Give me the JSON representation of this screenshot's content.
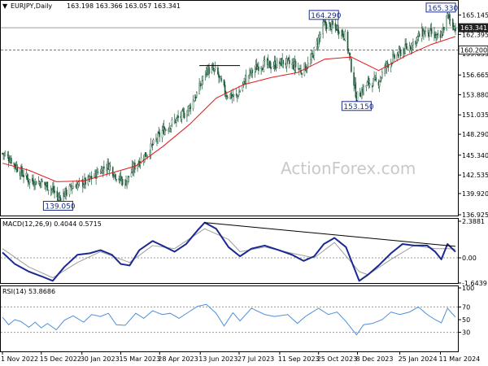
{
  "chart_data": [
    {
      "type": "candlestick",
      "name": "price",
      "title": "EURJPY,Daily",
      "ohlc": "163.198 163.366 163.057 163.341",
      "ylim": [
        136.925,
        166.8
      ],
      "y_ticks": [
        "165.145",
        "162.395",
        "159.655",
        "156.665",
        "153.880",
        "151.035",
        "148.290",
        "145.340",
        "142.535",
        "139.920",
        "136.925"
      ],
      "horizontal_lines": [
        {
          "value": 163.341,
          "label": "163.341",
          "color": "#9e9e9e",
          "label_style": "box-dark"
        },
        {
          "value": 160.2,
          "label": "160.200",
          "color": "#777777",
          "style": "dashed",
          "label_style": "box-light"
        }
      ],
      "callouts": [
        {
          "label": "164.290",
          "date": "2023-10-31",
          "value": 164.29
        },
        {
          "label": "165.330",
          "date": "2024-03-19",
          "value": 165.33
        },
        {
          "label": "153.150",
          "date": "2023-12-07",
          "value": 153.15
        },
        {
          "label": "139.050",
          "date": "2023-01-03",
          "value": 139.05
        }
      ],
      "segment_line": {
        "start_date": "2023-06-12",
        "end_date": "2023-07-28",
        "value": 158.0
      },
      "moving_average": {
        "color": "#e21b1b",
        "points": [
          [
            "2022-11-01",
            144.2
          ],
          [
            "2022-12-01",
            143.2
          ],
          [
            "2023-01-01",
            141.6
          ],
          [
            "2023-02-01",
            141.7
          ],
          [
            "2023-03-01",
            142.7
          ],
          [
            "2023-04-01",
            143.8
          ],
          [
            "2023-05-01",
            146.5
          ],
          [
            "2023-06-01",
            149.7
          ],
          [
            "2023-07-01",
            153.4
          ],
          [
            "2023-08-01",
            155.3
          ],
          [
            "2023-09-01",
            156.3
          ],
          [
            "2023-10-01",
            157.0
          ],
          [
            "2023-11-01",
            158.9
          ],
          [
            "2023-12-01",
            159.2
          ],
          [
            "2024-01-01",
            157.3
          ],
          [
            "2024-02-01",
            159.4
          ],
          [
            "2024-03-01",
            161.0
          ],
          [
            "2024-03-28",
            162.1
          ]
        ]
      },
      "close_path": [
        [
          "2022-11-01",
          145.6
        ],
        [
          "2022-11-10",
          144.8
        ],
        [
          "2022-11-20",
          143.2
        ],
        [
          "2022-12-01",
          141.8
        ],
        [
          "2022-12-15",
          141.5
        ],
        [
          "2022-12-28",
          140.5
        ],
        [
          "2023-01-03",
          139.1
        ],
        [
          "2023-01-20",
          141.0
        ],
        [
          "2023-02-05",
          141.6
        ],
        [
          "2023-02-20",
          143.2
        ],
        [
          "2023-03-01",
          144.0
        ],
        [
          "2023-03-10",
          142.4
        ],
        [
          "2023-03-20",
          141.4
        ],
        [
          "2023-04-01",
          144.0
        ],
        [
          "2023-04-15",
          145.8
        ],
        [
          "2023-05-01",
          148.7
        ],
        [
          "2023-05-15",
          150.2
        ],
        [
          "2023-05-28",
          151.3
        ],
        [
          "2023-06-10",
          154.2
        ],
        [
          "2023-06-20",
          157.4
        ],
        [
          "2023-07-01",
          157.2
        ],
        [
          "2023-07-12",
          154.0
        ],
        [
          "2023-07-24",
          153.5
        ],
        [
          "2023-08-05",
          156.5
        ],
        [
          "2023-08-20",
          158.2
        ],
        [
          "2023-09-01",
          158.0
        ],
        [
          "2023-09-15",
          158.5
        ],
        [
          "2023-09-28",
          158.0
        ],
        [
          "2023-10-05",
          157.3
        ],
        [
          "2023-10-15",
          158.3
        ],
        [
          "2023-10-31",
          163.8
        ],
        [
          "2023-11-15",
          163.4
        ],
        [
          "2023-11-25",
          162.0
        ],
        [
          "2023-12-07",
          153.5
        ],
        [
          "2023-12-20",
          155.5
        ],
        [
          "2024-01-01",
          155.8
        ],
        [
          "2024-01-10",
          158.1
        ],
        [
          "2024-01-25",
          159.8
        ],
        [
          "2024-02-05",
          160.7
        ],
        [
          "2024-02-20",
          162.7
        ],
        [
          "2024-03-01",
          162.5
        ],
        [
          "2024-03-10",
          161.5
        ],
        [
          "2024-03-19",
          165.0
        ],
        [
          "2024-03-28",
          163.3
        ]
      ]
    },
    {
      "type": "line",
      "name": "macd",
      "title": "MACD(12,26,9) 0.4044 0.5715",
      "ylim": [
        -1.6439,
        2.3881
      ],
      "y_ticks": [
        "2.3881",
        "0.00",
        "-1.6439"
      ],
      "zero_line": true,
      "series": [
        {
          "name": "MACD",
          "color": "#1b2891",
          "points": [
            [
              "2022-11-01",
              0.35
            ],
            [
              "2022-11-15",
              -0.4
            ],
            [
              "2022-12-01",
              -0.9
            ],
            [
              "2022-12-15",
              -1.2
            ],
            [
              "2022-12-28",
              -1.5
            ],
            [
              "2023-01-10",
              -0.6
            ],
            [
              "2023-01-25",
              0.2
            ],
            [
              "2023-02-08",
              0.3
            ],
            [
              "2023-02-20",
              0.5
            ],
            [
              "2023-03-05",
              0.2
            ],
            [
              "2023-03-15",
              -0.4
            ],
            [
              "2023-03-25",
              -0.5
            ],
            [
              "2023-04-05",
              0.5
            ],
            [
              "2023-04-20",
              1.1
            ],
            [
              "2023-05-01",
              0.8
            ],
            [
              "2023-05-15",
              0.4
            ],
            [
              "2023-05-28",
              0.9
            ],
            [
              "2023-06-10",
              1.8
            ],
            [
              "2023-06-18",
              2.3
            ],
            [
              "2023-07-01",
              1.9
            ],
            [
              "2023-07-15",
              0.7
            ],
            [
              "2023-07-28",
              0.1
            ],
            [
              "2023-08-10",
              0.6
            ],
            [
              "2023-08-25",
              0.8
            ],
            [
              "2023-09-10",
              0.5
            ],
            [
              "2023-09-25",
              0.2
            ],
            [
              "2023-10-08",
              -0.2
            ],
            [
              "2023-10-20",
              0.1
            ],
            [
              "2023-10-31",
              0.9
            ],
            [
              "2023-11-12",
              1.3
            ],
            [
              "2023-11-25",
              0.7
            ],
            [
              "2023-12-10",
              -1.5
            ],
            [
              "2023-12-20",
              -1.1
            ],
            [
              "2024-01-01",
              -0.5
            ],
            [
              "2024-01-15",
              0.3
            ],
            [
              "2024-01-28",
              0.9
            ],
            [
              "2024-02-10",
              0.8
            ],
            [
              "2024-02-25",
              0.8
            ],
            [
              "2024-03-05",
              0.4
            ],
            [
              "2024-03-12",
              -0.1
            ],
            [
              "2024-03-19",
              0.9
            ],
            [
              "2024-03-28",
              0.4
            ]
          ]
        },
        {
          "name": "Signal",
          "color": "#9e9e9e",
          "points": [
            [
              "2022-11-01",
              0.6
            ],
            [
              "2022-12-01",
              -0.6
            ],
            [
              "2022-12-28",
              -1.3
            ],
            [
              "2023-01-25",
              -0.3
            ],
            [
              "2023-02-20",
              0.4
            ],
            [
              "2023-03-25",
              -0.3
            ],
            [
              "2023-04-20",
              0.8
            ],
            [
              "2023-05-15",
              0.6
            ],
            [
              "2023-06-18",
              1.9
            ],
            [
              "2023-07-15",
              1.2
            ],
            [
              "2023-07-28",
              0.4
            ],
            [
              "2023-08-25",
              0.7
            ],
            [
              "2023-09-25",
              0.3
            ],
            [
              "2023-10-20",
              0.0
            ],
            [
              "2023-11-12",
              1.0
            ],
            [
              "2023-12-10",
              -0.9
            ],
            [
              "2023-12-20",
              -1.1
            ],
            [
              "2024-01-15",
              -0.1
            ],
            [
              "2024-02-10",
              0.8
            ],
            [
              "2024-03-05",
              0.6
            ],
            [
              "2024-03-19",
              0.6
            ],
            [
              "2024-03-28",
              0.57
            ]
          ]
        }
      ],
      "trendline": {
        "start": [
          "2023-06-18",
          2.3
        ],
        "end": [
          "2024-03-28",
          0.75
        ]
      }
    },
    {
      "type": "line",
      "name": "rsi",
      "title": "RSI(14) 53.8686",
      "ylim": [
        0,
        100
      ],
      "y_ticks": [
        "100",
        "70",
        "50",
        "30"
      ],
      "levels": [
        70,
        30
      ],
      "series": [
        {
          "name": "RSI",
          "color": "#4f8fd6",
          "points": [
            [
              "2022-11-01",
              54
            ],
            [
              "2022-11-08",
              42
            ],
            [
              "2022-11-15",
              50
            ],
            [
              "2022-11-22",
              47
            ],
            [
              "2022-12-01",
              38
            ],
            [
              "2022-12-08",
              46
            ],
            [
              "2022-12-15",
              37
            ],
            [
              "2022-12-22",
              44
            ],
            [
              "2023-01-01",
              34
            ],
            [
              "2023-01-10",
              49
            ],
            [
              "2023-01-20",
              56
            ],
            [
              "2023-02-01",
              46
            ],
            [
              "2023-02-10",
              58
            ],
            [
              "2023-02-20",
              55
            ],
            [
              "2023-03-01",
              60
            ],
            [
              "2023-03-10",
              42
            ],
            [
              "2023-03-20",
              41
            ],
            [
              "2023-04-01",
              60
            ],
            [
              "2023-04-10",
              52
            ],
            [
              "2023-04-20",
              64
            ],
            [
              "2023-05-01",
              58
            ],
            [
              "2023-05-10",
              60
            ],
            [
              "2023-05-20",
              52
            ],
            [
              "2023-06-01",
              63
            ],
            [
              "2023-06-10",
              71
            ],
            [
              "2023-06-20",
              74
            ],
            [
              "2023-07-01",
              60
            ],
            [
              "2023-07-10",
              40
            ],
            [
              "2023-07-20",
              61
            ],
            [
              "2023-07-28",
              48
            ],
            [
              "2023-08-10",
              68
            ],
            [
              "2023-08-25",
              58
            ],
            [
              "2023-09-05",
              55
            ],
            [
              "2023-09-20",
              58
            ],
            [
              "2023-10-01",
              44
            ],
            [
              "2023-10-10",
              55
            ],
            [
              "2023-10-25",
              68
            ],
            [
              "2023-11-05",
              58
            ],
            [
              "2023-11-15",
              62
            ],
            [
              "2023-11-25",
              47
            ],
            [
              "2023-12-07",
              26
            ],
            [
              "2023-12-15",
              42
            ],
            [
              "2023-12-25",
              44
            ],
            [
              "2024-01-05",
              50
            ],
            [
              "2024-01-15",
              62
            ],
            [
              "2024-01-25",
              58
            ],
            [
              "2024-02-05",
              62
            ],
            [
              "2024-02-15",
              70
            ],
            [
              "2024-02-25",
              58
            ],
            [
              "2024-03-05",
              50
            ],
            [
              "2024-03-12",
              45
            ],
            [
              "2024-03-19",
              68
            ],
            [
              "2024-03-24",
              60
            ],
            [
              "2024-03-28",
              54
            ]
          ]
        }
      ]
    }
  ],
  "x_axis": {
    "start": "2022-11-01",
    "end": "2024-03-28",
    "ticks": [
      {
        "date": "2022-11-01",
        "label": "1 Nov 2022"
      },
      {
        "date": "2022-12-15",
        "label": "15 Dec 2022"
      },
      {
        "date": "2023-01-30",
        "label": "30 Jan 2023"
      },
      {
        "date": "2023-03-15",
        "label": "15 Mar 2023"
      },
      {
        "date": "2023-04-28",
        "label": "28 Apr 2023"
      },
      {
        "date": "2023-06-13",
        "label": "13 Jun 2023"
      },
      {
        "date": "2023-07-27",
        "label": "27 Jul 2023"
      },
      {
        "date": "2023-09-11",
        "label": "11 Sep 2023"
      },
      {
        "date": "2023-10-25",
        "label": "25 Oct 2023"
      },
      {
        "date": "2023-12-08",
        "label": "8 Dec 2023"
      },
      {
        "date": "2024-01-25",
        "label": "25 Jan 2024"
      },
      {
        "date": "2024-03-11",
        "label": "11 Mar 2024"
      }
    ]
  },
  "watermark": "ActionForex.com",
  "colors": {
    "candle_up": "#1e5a3a",
    "candle_down": "#1e5a3a",
    "ma": "#e21b1b",
    "macd": "#1b2891",
    "signal": "#9e9e9e",
    "rsi": "#4f8fd6",
    "callout": "#1b2f8a"
  }
}
